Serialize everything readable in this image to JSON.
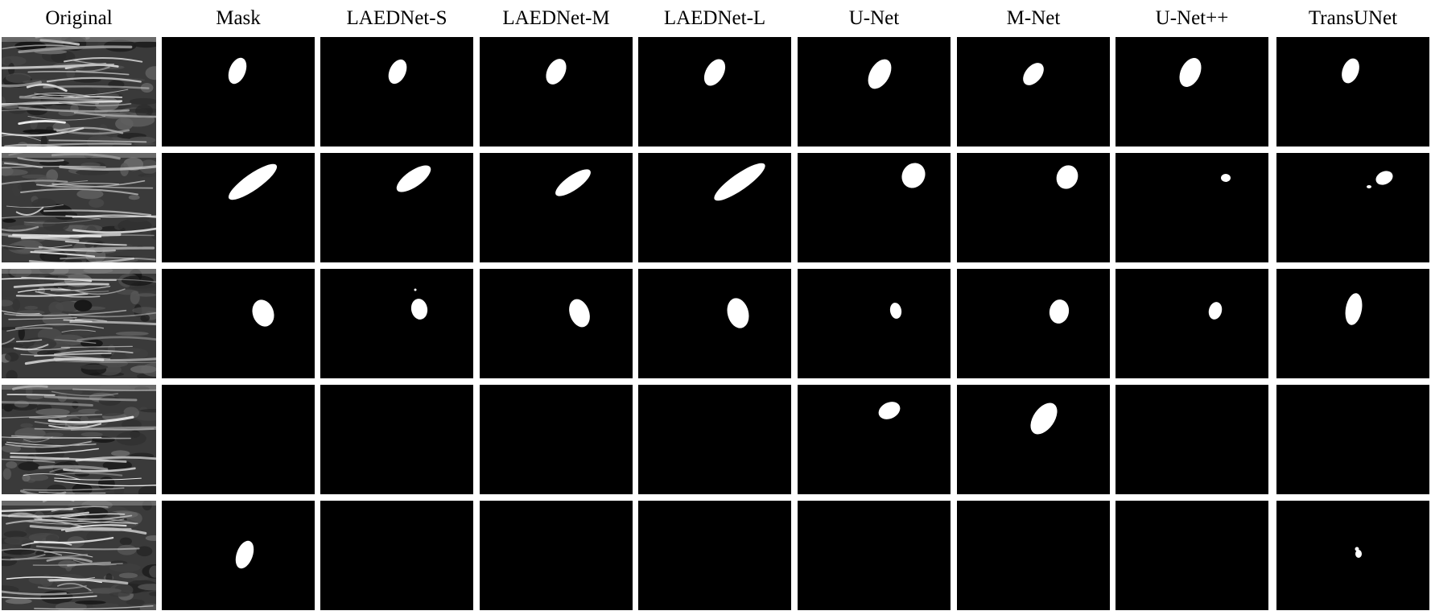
{
  "figure": {
    "column_headers": [
      "Original",
      "Mask",
      "LAEDNet-S",
      "LAEDNet-M",
      "LAEDNet-L",
      "U-Net",
      "M-Net",
      "U-Net++",
      "TransUNet"
    ],
    "row_count": 5,
    "colors": {
      "background": "#ffffff",
      "mask_background": "#000000",
      "mask_foreground": "#ffffff",
      "ultrasound_base": "#3a3a3a"
    },
    "segmentation_regions_present": [
      [
        true,
        true,
        true,
        true,
        true,
        true,
        true,
        true
      ],
      [
        true,
        true,
        true,
        true,
        true,
        true,
        true,
        true
      ],
      [
        true,
        true,
        true,
        true,
        true,
        true,
        true,
        true
      ],
      [
        false,
        false,
        false,
        false,
        true,
        true,
        false,
        false
      ],
      [
        true,
        false,
        false,
        false,
        false,
        false,
        false,
        true
      ]
    ]
  }
}
